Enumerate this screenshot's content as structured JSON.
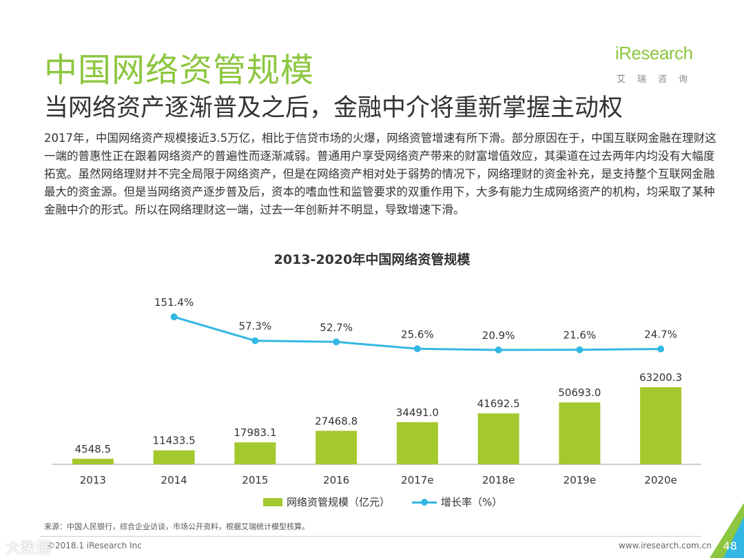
{
  "header": {
    "title": "中国网络资管规模",
    "subtitle": "当网络资产逐渐普及之后，金融中介将重新掌握主动权",
    "body": "2017年，中国网络资产规模接近3.5万亿，相比于信贷市场的火爆，网络资管增速有所下滑。部分原因在于，中国互联网金融在理财这一端的普惠性正在跟着网络资产的普遍性而逐渐减弱。普通用户享受网络资产带来的财富增值效应，其渠道在过去两年内均没有大幅度拓宽。虽然网络理财并不完全局限于网络资产，但是在网络资产相对处于弱势的情况下，网络理财的资金补充，是支持整个互联网金融最大的资金源。但是当网络资产逐步普及后，资本的嗜血性和监管要求的双重作用下，大多有能力生成网络资产的机构，均采取了某种金融中介的形式。所以在网络理财这一端，过去一年创新并不明显，导致增速下滑。"
  },
  "logo": {
    "main": "iResearch",
    "sub": "艾瑞咨询"
  },
  "chart_data": {
    "type": "bar",
    "title": "2013-2020年中国网络资管规模",
    "categories": [
      "2013",
      "2014",
      "2015",
      "2016",
      "2017e",
      "2018e",
      "2019e",
      "2020e"
    ],
    "series": [
      {
        "name": "网络资管规模（亿元）",
        "type": "bar",
        "values": [
          4548.5,
          11433.5,
          17983.1,
          27468.8,
          34491.0,
          41692.5,
          50693.0,
          63200.3
        ],
        "labels": [
          "4548.5",
          "11433.5",
          "17983.1",
          "27468.8",
          "34491.0",
          "41692.5",
          "50693.0",
          "63200.3"
        ],
        "color": "#a4c92e"
      },
      {
        "name": "增长率（%）",
        "type": "line",
        "values": [
          null,
          151.4,
          57.3,
          52.7,
          25.6,
          20.9,
          21.6,
          24.7
        ],
        "labels": [
          "",
          "151.4%",
          "57.3%",
          "52.7%",
          "25.6%",
          "20.9%",
          "21.6%",
          "24.7%"
        ],
        "color": "#33b7e3"
      }
    ],
    "xlabel": "",
    "ylabel": "",
    "legend": "bottom"
  },
  "footer": {
    "source": "来源：中国人民银行，综合企业访谈，市场公开资料，根据艾瑞统计模型核算。",
    "company": "©2018.1 iResearch Inc",
    "url": "www.iresearch.com.cn",
    "page": "48",
    "watermark": "大数据"
  }
}
